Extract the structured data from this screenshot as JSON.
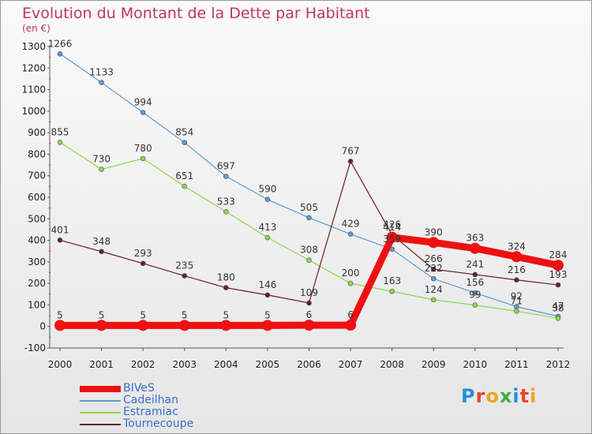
{
  "header": {
    "title": "Evolution du Montant de la Dette par Habitant",
    "subtitle": "(en €)"
  },
  "logo": {
    "text": "Proxiti",
    "colors": [
      "#2a8fd8",
      "#e8452c",
      "#f2a41d",
      "#3fae49",
      "#2a8fd8",
      "#e8452c",
      "#f2a41d"
    ]
  },
  "chart_data": {
    "type": "line",
    "title": "Evolution du Montant de la Dette par Habitant",
    "ylabel": "(en €)",
    "xlabel": "",
    "ylim": [
      -100,
      1300
    ],
    "yticks": [
      -100,
      0,
      100,
      200,
      300,
      400,
      500,
      600,
      700,
      800,
      900,
      1000,
      1100,
      1200,
      1300
    ],
    "grid": false,
    "legend_position": "bottom-left",
    "x": [
      "2000",
      "2001",
      "2002",
      "2003",
      "2004",
      "2005",
      "2006",
      "2007",
      "2008",
      "2009",
      "2010",
      "2011",
      "2012"
    ],
    "series": [
      {
        "name": "BIVeS",
        "color": "#ee1111",
        "values": [
          5,
          5,
          5,
          5,
          5,
          5,
          6,
          6,
          414,
          390,
          363,
          324,
          284
        ],
        "labels": [
          "5",
          "5",
          "5",
          "5",
          "5",
          "5",
          "6",
          "6",
          "414",
          "390",
          "363",
          "324",
          "284"
        ]
      },
      {
        "name": "Cadeilhan",
        "color": "#5a9bd4",
        "values": [
          1266,
          1133,
          994,
          854,
          697,
          590,
          505,
          429,
          359,
          222,
          156,
          92,
          47
        ],
        "labels": [
          "1266",
          "1133",
          "994",
          "854",
          "697",
          "590",
          "505",
          "429",
          "359",
          "222",
          "156",
          "92",
          "47"
        ]
      },
      {
        "name": "Estramiac",
        "color": "#8ed64a",
        "values": [
          855,
          730,
          780,
          651,
          533,
          413,
          308,
          200,
          163,
          124,
          99,
          71,
          38
        ],
        "labels": [
          "855",
          "730",
          "780",
          "651",
          "533",
          "413",
          "308",
          "200",
          "163",
          "124",
          "99",
          "71",
          "38"
        ]
      },
      {
        "name": "Tournecoupe",
        "color": "#6b1f1f",
        "values": [
          401,
          348,
          293,
          235,
          180,
          146,
          109,
          767,
          426,
          266,
          241,
          216,
          193
        ],
        "labels": [
          "401",
          "348",
          "293",
          "235",
          "180",
          "146",
          "109",
          "767",
          "426",
          "266",
          "241",
          "216",
          "193"
        ]
      }
    ]
  }
}
